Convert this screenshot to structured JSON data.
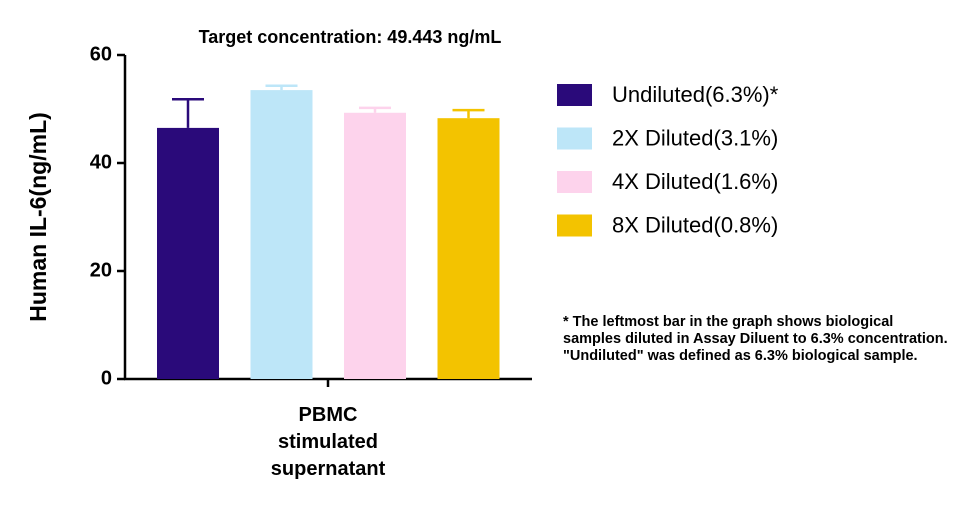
{
  "chart_data": {
    "type": "bar",
    "title": "Target concentration: 49.443 ng/mL",
    "y_label": "Human IL-6(ng/mL)",
    "categories": [
      "PBMC stimulated supernatant"
    ],
    "series": [
      {
        "name": "Undiluted(6.3%)*",
        "color": "#2a0a7a",
        "values": [
          46.5
        ],
        "errors": [
          5.3
        ]
      },
      {
        "name": "2X Diluted(3.1%)",
        "color": "#bde6f8",
        "values": [
          53.5
        ],
        "errors": [
          0.8
        ]
      },
      {
        "name": "4X Diluted(1.6%)",
        "color": "#fdd3ec",
        "values": [
          49.3
        ],
        "errors": [
          0.9
        ]
      },
      {
        "name": "8X Diluted(0.8%)",
        "color": "#f3c300",
        "values": [
          48.3
        ],
        "errors": [
          1.5
        ]
      }
    ],
    "ylim": [
      0,
      60
    ],
    "yticks": [
      0,
      20,
      40,
      60
    ],
    "annotation": "* The leftmost bar in the graph shows biological samples diluted in Assay Diluent to 6.3% concentration. \"Undiluted\" was defined as 6.3% biological sample."
  }
}
